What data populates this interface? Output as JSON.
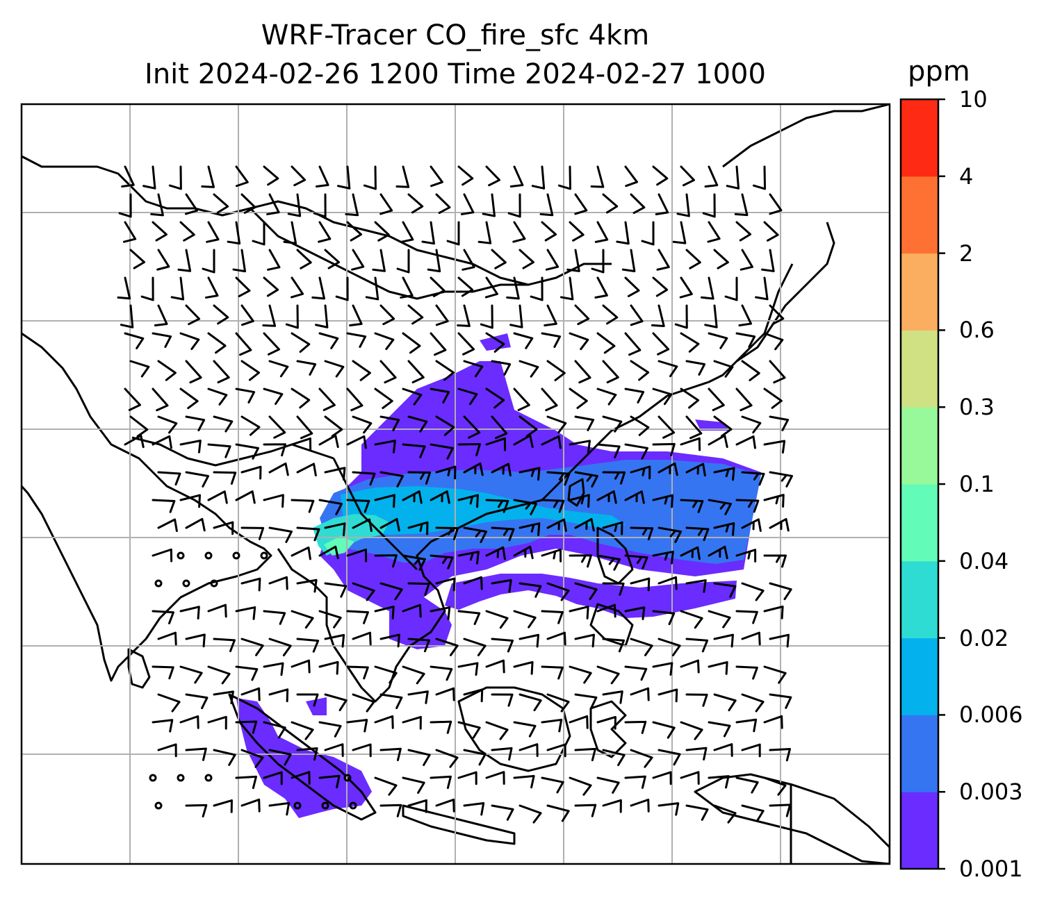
{
  "title": {
    "line1": "WRF-Tracer CO_fire_sfc 4km",
    "line2": "Init 2024-02-26 1200 Time 2024-02-27 1000"
  },
  "colorbar": {
    "unit": "ppm",
    "levels": [
      "0.001",
      "0.003",
      "0.006",
      "0.02",
      "0.04",
      "0.1",
      "0.3",
      "0.6",
      "2",
      "4",
      "10"
    ],
    "colors": [
      "#6a2cff",
      "#3575f2",
      "#03b2ec",
      "#2fdcd4",
      "#62fbb8",
      "#98f99a",
      "#cfe183",
      "#fcae60",
      "#ff7133",
      "#fe2a13"
    ]
  },
  "map": {
    "background": "#ffffff",
    "gridline_color": "#b0b0b0",
    "coastline_color": "#000000",
    "barb_color": "#000000"
  }
}
